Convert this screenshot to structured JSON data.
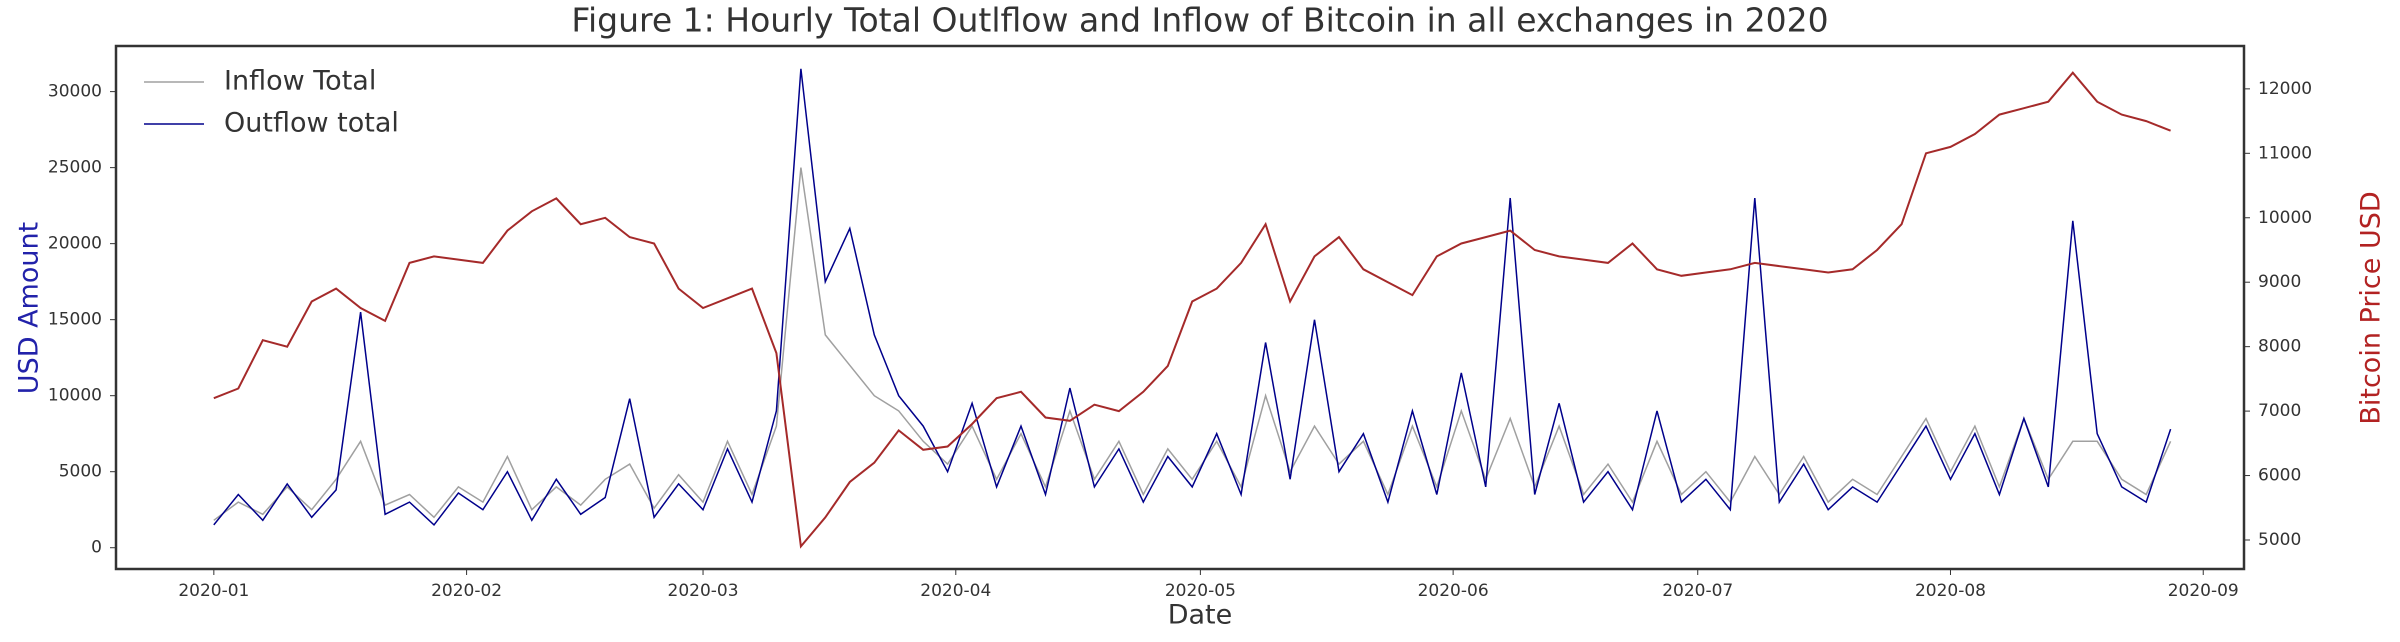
{
  "chart_data": {
    "type": "line",
    "title": "Figure 1: Hourly Total Outlflow and Inflow of Bitcoin in all exchanges in 2020",
    "xlabel": "Date",
    "ylabel": "USD Amount",
    "y2label": "Bitcoin Price USD",
    "legend": "upper left",
    "x": [
      "2020-01-01",
      "2020-01-04",
      "2020-01-07",
      "2020-01-10",
      "2020-01-13",
      "2020-01-16",
      "2020-01-19",
      "2020-01-22",
      "2020-01-25",
      "2020-01-28",
      "2020-01-31",
      "2020-02-03",
      "2020-02-06",
      "2020-02-09",
      "2020-02-12",
      "2020-02-15",
      "2020-02-18",
      "2020-02-21",
      "2020-02-24",
      "2020-02-27",
      "2020-03-01",
      "2020-03-04",
      "2020-03-07",
      "2020-03-10",
      "2020-03-13",
      "2020-03-16",
      "2020-03-19",
      "2020-03-22",
      "2020-03-25",
      "2020-03-28",
      "2020-03-31",
      "2020-04-03",
      "2020-04-06",
      "2020-04-09",
      "2020-04-12",
      "2020-04-15",
      "2020-04-18",
      "2020-04-21",
      "2020-04-24",
      "2020-04-27",
      "2020-04-30",
      "2020-05-03",
      "2020-05-06",
      "2020-05-09",
      "2020-05-12",
      "2020-05-15",
      "2020-05-18",
      "2020-05-21",
      "2020-05-24",
      "2020-05-27",
      "2020-05-30",
      "2020-06-02",
      "2020-06-05",
      "2020-06-08",
      "2020-06-11",
      "2020-06-14",
      "2020-06-17",
      "2020-06-20",
      "2020-06-23",
      "2020-06-26",
      "2020-06-29",
      "2020-07-02",
      "2020-07-05",
      "2020-07-08",
      "2020-07-11",
      "2020-07-14",
      "2020-07-17",
      "2020-07-20",
      "2020-07-23",
      "2020-07-26",
      "2020-07-29",
      "2020-08-01",
      "2020-08-04",
      "2020-08-07",
      "2020-08-10",
      "2020-08-13",
      "2020-08-16",
      "2020-08-19",
      "2020-08-22",
      "2020-08-25",
      "2020-08-28"
    ],
    "series": [
      {
        "name": "Inflow Total",
        "color": "#a0a0a0",
        "axis": "y",
        "values": [
          1800,
          3000,
          2200,
          4000,
          2500,
          4500,
          7000,
          2800,
          3500,
          2000,
          4000,
          3000,
          6000,
          2500,
          4000,
          2800,
          4500,
          5500,
          2600,
          4800,
          3000,
          7000,
          3500,
          8000,
          25000,
          14000,
          12000,
          10000,
          9000,
          7000,
          5500,
          8000,
          4500,
          7500,
          4000,
          9000,
          4500,
          7000,
          3500,
          6500,
          4500,
          7000,
          4000,
          10000,
          5000,
          8000,
          5500,
          7000,
          3500,
          8000,
          4000,
          9000,
          4500,
          8500,
          4000,
          8000,
          3500,
          5500,
          3000,
          7000,
          3500,
          5000,
          3000,
          6000,
          3500,
          6000,
          3000,
          4500,
          3500,
          6000,
          8500,
          5000,
          8000,
          4000,
          8500,
          4500,
          7000,
          7000,
          4500,
          3500,
          7000
        ]
      },
      {
        "name": "Outflow total",
        "color": "#00008b",
        "axis": "y",
        "values": [
          1500,
          3500,
          1800,
          4200,
          2000,
          3800,
          15500,
          2200,
          3000,
          1500,
          3600,
          2500,
          5000,
          1800,
          4500,
          2200,
          3300,
          9800,
          2000,
          4200,
          2500,
          6500,
          3000,
          9000,
          31500,
          17500,
          21000,
          14000,
          10000,
          8000,
          5000,
          9500,
          4000,
          8000,
          3500,
          10500,
          4000,
          6500,
          3000,
          6000,
          4000,
          7500,
          3500,
          13500,
          4500,
          15000,
          5000,
          7500,
          3000,
          9000,
          3500,
          11500,
          4000,
          23000,
          3500,
          9500,
          3000,
          5000,
          2500,
          9000,
          3000,
          4500,
          2500,
          23000,
          3000,
          5500,
          2500,
          4000,
          3000,
          5500,
          8000,
          4500,
          7500,
          3500,
          8500,
          4000,
          21500,
          7500,
          4000,
          3000,
          7800
        ]
      },
      {
        "color": "#a52a2a",
        "axis": "y2",
        "values": [
          7200,
          7350,
          8100,
          8000,
          8700,
          8900,
          8600,
          8400,
          9300,
          9400,
          9350,
          9300,
          9800,
          10100,
          10300,
          9900,
          10000,
          9700,
          9600,
          8900,
          8600,
          8750,
          8900,
          7900,
          4900,
          5350,
          5900,
          6200,
          6700,
          6400,
          6450,
          6800,
          7200,
          7300,
          6900,
          6850,
          7100,
          7000,
          7300,
          7700,
          8700,
          8900,
          9300,
          9900,
          8700,
          9400,
          9700,
          9200,
          9000,
          8800,
          9400,
          9600,
          9700,
          9800,
          9500,
          9400,
          9350,
          9300,
          9600,
          9200,
          9100,
          9150,
          9200,
          9300,
          9250,
          9200,
          9150,
          9200,
          9500,
          9900,
          11000,
          11100,
          11300,
          11600,
          11700,
          11800,
          12250,
          11800,
          11600,
          11500,
          11350
        ]
      }
    ],
    "xlim": [
      "2019-12-20",
      "2020-09-06"
    ],
    "xticks": [
      {
        "value": "2020-01-01",
        "label": "2020-01"
      },
      {
        "value": "2020-02-01",
        "label": "2020-02"
      },
      {
        "value": "2020-03-01",
        "label": "2020-03"
      },
      {
        "value": "2020-04-01",
        "label": "2020-04"
      },
      {
        "value": "2020-05-01",
        "label": "2020-05"
      },
      {
        "value": "2020-06-01",
        "label": "2020-06"
      },
      {
        "value": "2020-07-01",
        "label": "2020-07"
      },
      {
        "value": "2020-08-01",
        "label": "2020-08"
      },
      {
        "value": "2020-09-01",
        "label": "2020-09"
      }
    ],
    "ylim": [
      -1400,
      33000
    ],
    "yticks": [
      0,
      5000,
      10000,
      15000,
      20000,
      25000,
      30000
    ],
    "y2lim": [
      4550,
      12665
    ],
    "y2ticks": [
      5000,
      6000,
      7000,
      8000,
      9000,
      10000,
      11000,
      12000
    ]
  }
}
